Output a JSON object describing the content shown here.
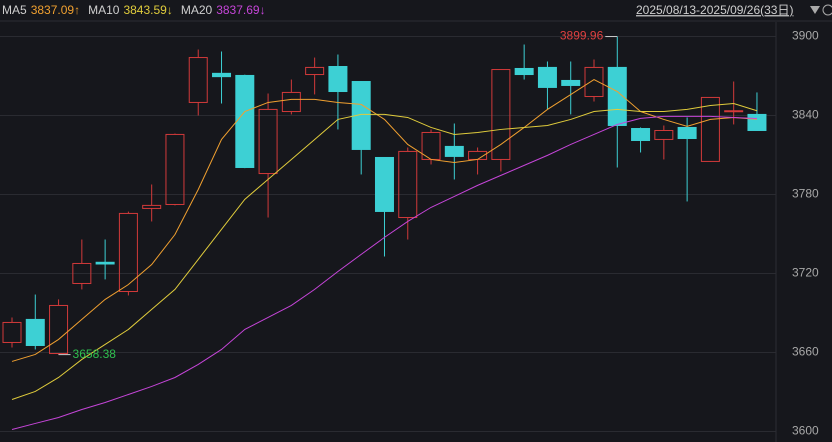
{
  "chart_data": {
    "type": "candlestick",
    "range_label": "2025/08/13-2025/09/26(33日)",
    "up_color": "#d23a3a",
    "down_color": "#3dd0d4",
    "ylim": [
      3592,
      3911
    ],
    "yticks": [
      3600,
      3660,
      3720,
      3780,
      3840,
      3900
    ],
    "grid": true,
    "open": [
      3667.6,
      3685.1,
      3659.2,
      3712.4,
      3728.5,
      3706.3,
      3769.4,
      3772.4,
      3849.9,
      3872,
      3870.4,
      3795.9,
      3843,
      3871.1,
      3877.2,
      3865.8,
      3808.1,
      3762.5,
      3806.6,
      3816.5,
      3806.6,
      3806.6,
      3875.7,
      3876.5,
      3866.6,
      3854.4,
      3876.5,
      3830.1,
      3821.8,
      3830.9,
      3805.1,
      3843,
      3840.8
    ],
    "high": [
      3686.6,
      3704,
      3700.3,
      3745.8,
      3745.8,
      3767,
      3787.6,
      3826.3,
      3890.1,
      3888.6,
      3871,
      3856.7,
      3867.3,
      3884,
      3886.3,
      3866,
      3808,
      3815.7,
      3829.4,
      3833.9,
      3815.7,
      3875,
      3893.9,
      3881,
      3881,
      3882.5,
      3899.96,
      3830.9,
      3832.4,
      3838.5,
      3853.9,
      3865.8,
      3857.5
    ],
    "low": [
      3663.8,
      3662.3,
      3658.38,
      3707.9,
      3715.5,
      3703.3,
      3759.5,
      3771.7,
      3840,
      3849.1,
      3800,
      3762.5,
      3840.8,
      3856,
      3829.4,
      3795.2,
      3732.9,
      3745.8,
      3802.8,
      3791.4,
      3795.2,
      3797.5,
      3867.3,
      3844.6,
      3840.8,
      3850.6,
      3800.5,
      3811.9,
      3806.6,
      3774.7,
      3804.9,
      3833.2,
      3828.6
    ],
    "close": [
      3682.8,
      3665.3,
      3695.7,
      3727.6,
      3727.2,
      3765.6,
      3771.7,
      3825.6,
      3884,
      3869.5,
      3800.5,
      3844.6,
      3857.5,
      3876.5,
      3858.2,
      3814.2,
      3767.1,
      3812.7,
      3827.1,
      3808.9,
      3812.7,
      3874.9,
      3871.1,
      3861.3,
      3862.8,
      3876.5,
      3832.4,
      3821,
      3828.6,
      3822.5,
      3853.7,
      3843.6,
      3828.6
    ],
    "series": [
      {
        "name": "MA5",
        "color": "#f0a030",
        "latest_label": "3837.09↑",
        "values": [
          3653.2,
          3658.5,
          3669.9,
          3685.1,
          3700.3,
          3711.6,
          3726.8,
          3749.6,
          3783.8,
          3821.8,
          3843,
          3849.9,
          3852.2,
          3852.2,
          3849.9,
          3848.4,
          3837,
          3818,
          3806.6,
          3804.3,
          3806.6,
          3818,
          3830.9,
          3844.6,
          3855.9,
          3867.3,
          3858.2,
          3843,
          3837,
          3831.7,
          3837,
          3838.5,
          3837.09
        ]
      },
      {
        "name": "MA10",
        "color": "#e0cc3c",
        "latest_label": "3843.59↓",
        "values": [
          3624.3,
          3630.4,
          3641,
          3654.7,
          3666.1,
          3677.5,
          3692.7,
          3707.9,
          3730.7,
          3753.5,
          3776.3,
          3791.5,
          3806.6,
          3821.8,
          3837,
          3840.8,
          3840.8,
          3838.5,
          3830.9,
          3825.6,
          3827.1,
          3829.4,
          3830.9,
          3832.4,
          3837,
          3843,
          3844.6,
          3843,
          3843,
          3844.6,
          3847.6,
          3849.1,
          3843.59
        ]
      },
      {
        "name": "MA20",
        "color": "#c545d8",
        "latest_label": "3837.69↓",
        "values": [
          3601.5,
          3606.1,
          3610.6,
          3616.7,
          3622,
          3628.1,
          3634.2,
          3641,
          3650.9,
          3662.3,
          3677.5,
          3686.6,
          3695.7,
          3707.9,
          3721.5,
          3734.5,
          3747.4,
          3759.5,
          3770.2,
          3778.5,
          3786.9,
          3794.5,
          3802.1,
          3809.7,
          3818,
          3825.6,
          3833.2,
          3837.8,
          3839.3,
          3839.3,
          3839.3,
          3838.5,
          3837.69
        ]
      }
    ]
  }
}
